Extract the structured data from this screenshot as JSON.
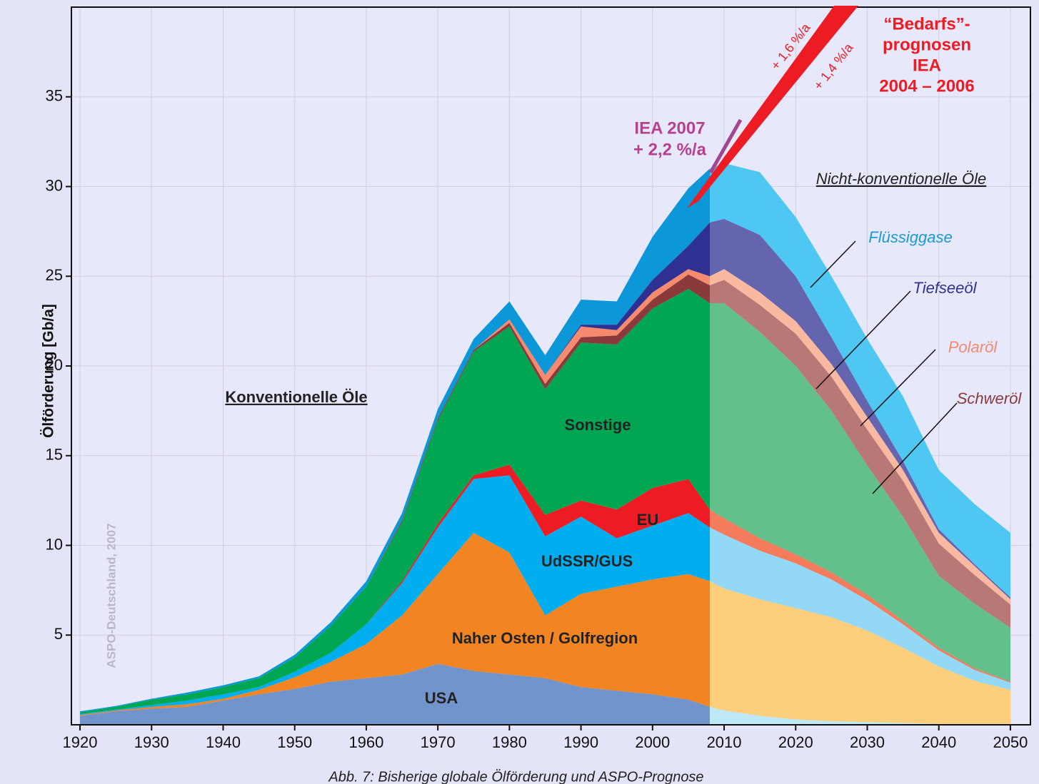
{
  "chart_data": {
    "type": "area",
    "ylabel": "Ölförderung [Gb/a]",
    "caption": "Abb. 7: Bisherige globale Ölförderung und ASPO-Prognose",
    "watermark": "ASPO-Deutschland, 2007",
    "annotations": {
      "conventional": "Konventionelle Öle",
      "unconventional": "Nicht-konventionelle Öle",
      "iea2007": [
        "IEA 2007",
        "+ 2,2 %/a"
      ],
      "iea_growth": [
        "+ 1,6 %/a",
        "+ 1,4 %/a"
      ],
      "iea_demand": [
        "“Bedarfs”-",
        "prognosen",
        "IEA",
        "2004 – 2006"
      ]
    },
    "x": [
      1920,
      1925,
      1930,
      1935,
      1940,
      1945,
      1950,
      1955,
      1960,
      1965,
      1970,
      1975,
      1980,
      1985,
      1990,
      1995,
      2000,
      2005,
      2008,
      2010,
      2015,
      2020,
      2025,
      2030,
      2035,
      2040,
      2045,
      2050
    ],
    "forecast_start": 2008,
    "xlim": [
      1918.8,
      2052.8
    ],
    "ylim": [
      0,
      40
    ],
    "xticks": [
      1920,
      1930,
      1940,
      1950,
      1960,
      1970,
      1980,
      1990,
      2000,
      2010,
      2020,
      2030,
      2040,
      2050
    ],
    "yticks": [
      5,
      10,
      15,
      20,
      25,
      30,
      35
    ],
    "grid": true,
    "series": [
      {
        "name": "USA",
        "color": "#7294cc",
        "forecast_color": "#bfe8f6",
        "values": [
          0.5,
          0.75,
          0.9,
          1.0,
          1.35,
          1.7,
          2.0,
          2.4,
          2.6,
          2.8,
          3.4,
          3.0,
          2.8,
          2.6,
          2.1,
          1.9,
          1.7,
          1.4,
          1.0,
          0.8,
          0.5,
          0.3,
          0.2,
          0.15,
          0.1,
          0.05,
          0.05,
          0.05
        ]
      },
      {
        "name": "Naher Osten / Golfregion",
        "color": "#f28522",
        "forecast_color": "#fdcf7c",
        "values": [
          0.05,
          0.05,
          0.1,
          0.15,
          0.1,
          0.25,
          0.65,
          1.1,
          1.9,
          3.3,
          5.0,
          7.7,
          6.8,
          3.5,
          5.2,
          5.8,
          6.4,
          7.0,
          7.0,
          6.8,
          6.5,
          6.2,
          5.8,
          5.1,
          4.2,
          3.2,
          2.4,
          1.9
        ]
      },
      {
        "name": "UdSSR/GUS",
        "color": "#00aeef",
        "forecast_color": "#93d8f4",
        "values": [
          0.05,
          0.05,
          0.1,
          0.2,
          0.25,
          0.15,
          0.3,
          0.5,
          1.1,
          1.8,
          2.6,
          3.0,
          4.3,
          4.4,
          4.3,
          2.7,
          3.0,
          3.4,
          3.0,
          3.0,
          2.7,
          2.5,
          2.1,
          1.7,
          1.3,
          0.9,
          0.6,
          0.4
        ]
      },
      {
        "name": "EU",
        "color": "#ed1c24",
        "forecast_color": "#f47b5c",
        "values": [
          0,
          0,
          0,
          0,
          0,
          0,
          0,
          0,
          0,
          0.1,
          0.2,
          0.2,
          0.6,
          1.2,
          0.9,
          1.6,
          2.1,
          1.9,
          1.0,
          0.9,
          0.7,
          0.5,
          0.4,
          0.3,
          0.2,
          0.15,
          0.1,
          0.05
        ]
      },
      {
        "name": "Sonstige",
        "color": "#00a651",
        "forecast_color": "#64c08b",
        "values": [
          0.1,
          0.15,
          0.3,
          0.35,
          0.4,
          0.5,
          0.8,
          1.5,
          2.1,
          3.3,
          5.8,
          6.9,
          7.7,
          7.0,
          8.8,
          9.2,
          10.0,
          10.6,
          11.5,
          12.0,
          11.5,
          10.5,
          9.0,
          7.2,
          5.8,
          4.0,
          3.6,
          3.0
        ]
      },
      {
        "name": "Schweröl",
        "color": "#8b3a3a",
        "forecast_color": "#b87876",
        "values": [
          0,
          0,
          0,
          0,
          0,
          0,
          0,
          0,
          0,
          0.1,
          0.1,
          0.1,
          0.2,
          0.3,
          0.3,
          0.5,
          0.5,
          0.8,
          1.0,
          1.3,
          1.5,
          1.8,
          1.9,
          2.0,
          2.0,
          1.8,
          1.6,
          1.3
        ]
      },
      {
        "name": "Polaröl",
        "color": "#f58a6e",
        "forecast_color": "#f9b9a0",
        "values": [
          0,
          0,
          0,
          0,
          0,
          0,
          0,
          0,
          0,
          0,
          0,
          0,
          0.2,
          0.5,
          0.6,
          0.3,
          0.4,
          0.3,
          0.5,
          0.6,
          0.7,
          0.7,
          0.7,
          0.7,
          0.6,
          0.6,
          0.5,
          0.3
        ]
      },
      {
        "name": "Tiefseeöl",
        "color": "#2e3192",
        "forecast_color": "#6465ae",
        "values": [
          0,
          0,
          0,
          0,
          0,
          0,
          0,
          0,
          0,
          0,
          0,
          0,
          0,
          0,
          0.1,
          0.3,
          0.7,
          1.3,
          3.0,
          2.8,
          3.2,
          2.5,
          1.5,
          0.9,
          0.5,
          0.2,
          0.1,
          0.1
        ]
      },
      {
        "name": "Flüssiggase",
        "color": "#0b97d8",
        "forecast_color": "#4ec8f3",
        "values": [
          0.05,
          0.05,
          0.05,
          0.1,
          0.1,
          0.1,
          0.15,
          0.2,
          0.3,
          0.4,
          0.5,
          0.6,
          1.0,
          1.1,
          1.4,
          1.3,
          2.4,
          3.2,
          3.0,
          3.1,
          3.5,
          3.3,
          3.4,
          3.45,
          3.6,
          3.3,
          3.35,
          3.6
        ]
      }
    ]
  }
}
